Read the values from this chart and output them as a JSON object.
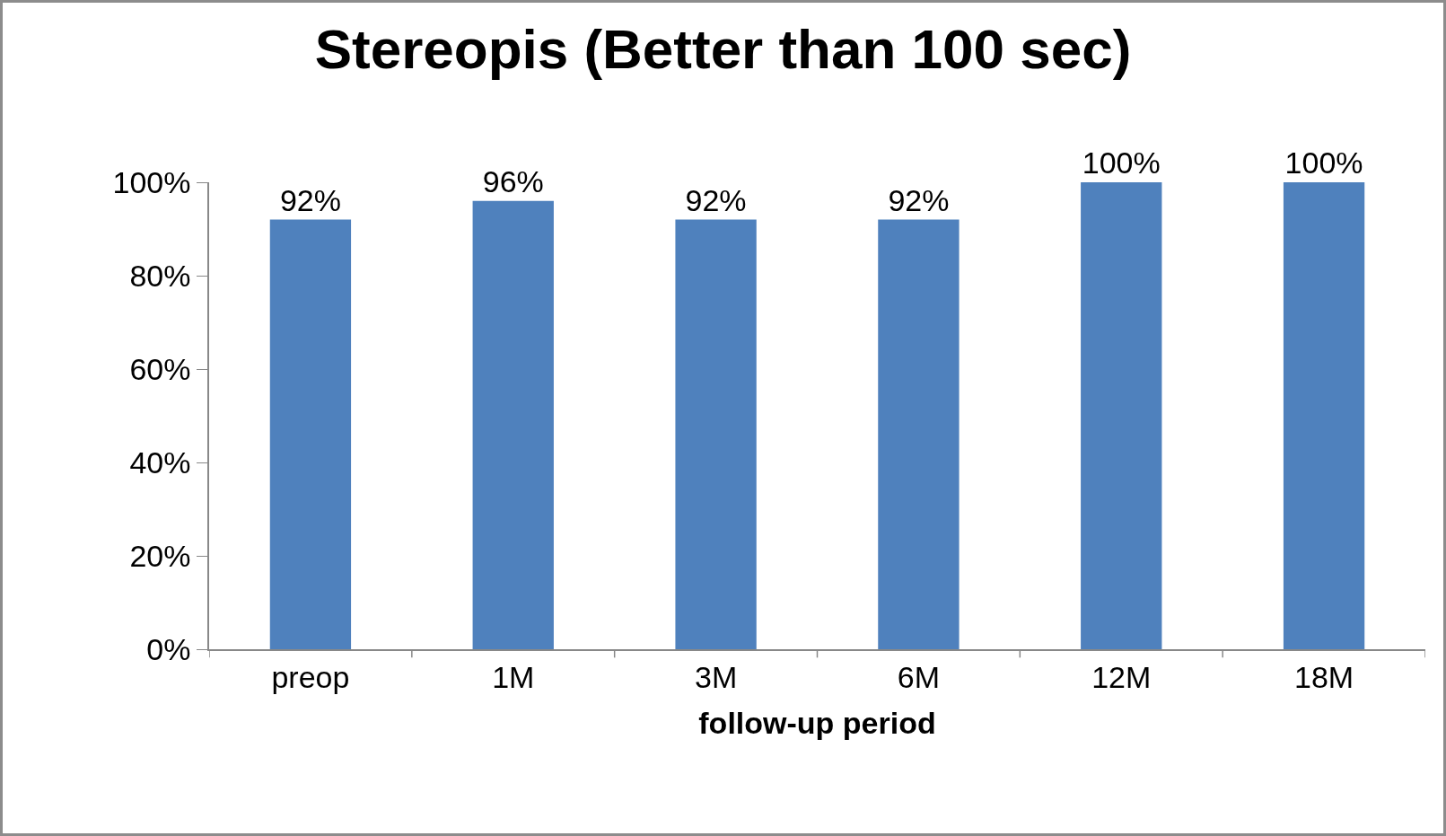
{
  "chart_data": {
    "type": "bar",
    "title": "Stereopis (Better than 100 sec)",
    "xlabel": "follow-up period",
    "categories": [
      "preop",
      "1M",
      "3M",
      "6M",
      "12M",
      "18M"
    ],
    "values": [
      92,
      96,
      92,
      92,
      100,
      100
    ],
    "value_labels": [
      "92%",
      "96%",
      "92%",
      "92%",
      "100%",
      "100%"
    ],
    "color": "#4f81bd",
    "ylim": [
      0,
      100
    ],
    "yticks": [
      {
        "value": 0,
        "label": "0%"
      },
      {
        "value": 20,
        "label": "20%"
      },
      {
        "value": 40,
        "label": "40%"
      },
      {
        "value": 60,
        "label": "60%"
      },
      {
        "value": 80,
        "label": "80%"
      },
      {
        "value": 100,
        "label": "100%"
      }
    ],
    "grid": false,
    "legend": false
  }
}
